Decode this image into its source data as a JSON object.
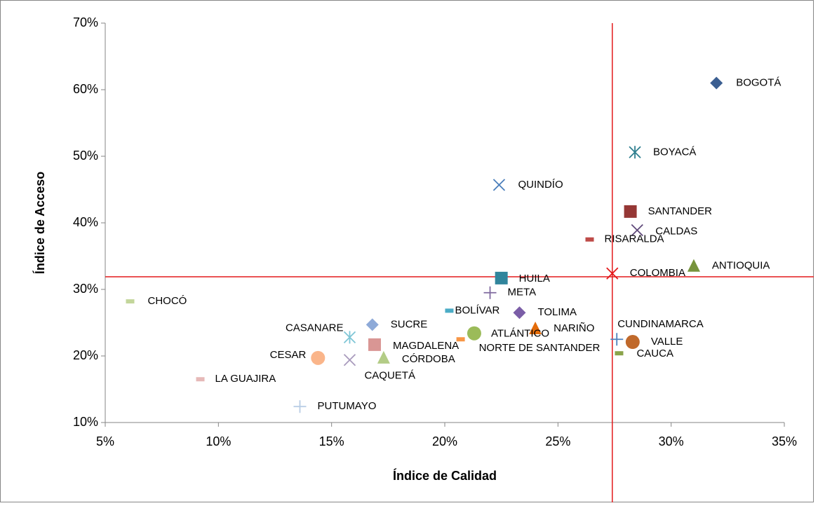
{
  "chart_data": {
    "type": "scatter",
    "x_label": "Índice de Calidad",
    "y_label": "Índice de Acceso",
    "xlim": [
      5,
      35
    ],
    "ylim": [
      10,
      70
    ],
    "xticks": [
      {
        "value": 5,
        "label": "5%"
      },
      {
        "value": 10,
        "label": "10%"
      },
      {
        "value": 15,
        "label": "15%"
      },
      {
        "value": 20,
        "label": "20%"
      },
      {
        "value": 25,
        "label": "25%"
      },
      {
        "value": 30,
        "label": "30%"
      },
      {
        "value": 35,
        "label": "35%"
      }
    ],
    "yticks": [
      {
        "value": 10,
        "label": "10%"
      },
      {
        "value": 20,
        "label": "20%"
      },
      {
        "value": 30,
        "label": "30%"
      },
      {
        "value": 40,
        "label": "40%"
      },
      {
        "value": 50,
        "label": "50%"
      },
      {
        "value": 60,
        "label": "60%"
      },
      {
        "value": 70,
        "label": "70%"
      }
    ],
    "reference_lines": {
      "x": 27.4,
      "y": 31.9,
      "color": "#e31a1c"
    },
    "series": [
      {
        "name": "BOGOTÁ",
        "color": "#3b5e91",
        "marker": "diamond",
        "x": [
          32.0
        ],
        "values": [
          61.0
        ]
      },
      {
        "name": "BOYACÁ",
        "color": "#2f7f8f",
        "marker": "asterisk",
        "x": [
          28.4
        ],
        "values": [
          50.6
        ]
      },
      {
        "name": "QUINDÍO",
        "color": "#4a7ebb",
        "marker": "x",
        "x": [
          22.4
        ],
        "values": [
          45.7
        ]
      },
      {
        "name": "SANTANDER",
        "color": "#953735",
        "marker": "square",
        "x": [
          28.2
        ],
        "values": [
          41.7
        ]
      },
      {
        "name": "CALDAS",
        "color": "#604a7b",
        "marker": "x",
        "x": [
          28.5
        ],
        "values": [
          38.9
        ]
      },
      {
        "name": "RISARALDA",
        "color": "#be4b48",
        "marker": "dash",
        "x": [
          26.4
        ],
        "values": [
          37.5
        ]
      },
      {
        "name": "ANTIOQUIA",
        "color": "#77933c",
        "marker": "triangle",
        "x": [
          31.0
        ],
        "values": [
          33.5
        ]
      },
      {
        "name": "COLOMBIA",
        "color": "#e31a1c",
        "marker": "x",
        "x": [
          27.4
        ],
        "values": [
          32.4
        ]
      },
      {
        "name": "HUILA",
        "color": "#31859c",
        "marker": "square",
        "x": [
          22.5
        ],
        "values": [
          31.7
        ]
      },
      {
        "name": "META",
        "color": "#7f6a9f",
        "marker": "plus",
        "x": [
          22.0
        ],
        "values": [
          29.5
        ]
      },
      {
        "name": "CHOCÓ",
        "color": "#c3d69b",
        "marker": "dash",
        "x": [
          6.1
        ],
        "values": [
          28.2
        ]
      },
      {
        "name": "BOLÍVAR",
        "color": "#4bacc6",
        "marker": "dash",
        "x": [
          20.2
        ],
        "values": [
          26.8
        ]
      },
      {
        "name": "TOLIMA",
        "color": "#7b5ea7",
        "marker": "diamond",
        "x": [
          23.3
        ],
        "values": [
          26.5
        ]
      },
      {
        "name": "NARIÑO",
        "color": "#e46c0a",
        "marker": "triangle",
        "x": [
          24.0
        ],
        "values": [
          24.1
        ]
      },
      {
        "name": "ATLÁNTICO",
        "color": "#9bbb59",
        "marker": "circle",
        "x": [
          21.3
        ],
        "values": [
          23.4
        ]
      },
      {
        "name": "SUCRE",
        "color": "#8eaad8",
        "marker": "diamond",
        "x": [
          16.8
        ],
        "values": [
          24.7
        ]
      },
      {
        "name": "CASANARE",
        "color": "#7fc6d6",
        "marker": "asterisk",
        "x": [
          15.8
        ],
        "values": [
          22.8
        ]
      },
      {
        "name": "NORTE DE SANTANDER",
        "color": "#f79646",
        "marker": "dash",
        "x": [
          20.7
        ],
        "values": [
          22.5
        ]
      },
      {
        "name": "MAGDALENA",
        "color": "#d99694",
        "marker": "square",
        "x": [
          16.9
        ],
        "values": [
          21.7
        ]
      },
      {
        "name": "CUNDINAMARCA",
        "color": "#4f81bd",
        "marker": "plus",
        "x": [
          27.6
        ],
        "values": [
          22.5
        ]
      },
      {
        "name": "VALLE",
        "color": "#c0692b",
        "marker": "circle",
        "x": [
          28.3
        ],
        "values": [
          22.1
        ]
      },
      {
        "name": "CAUCA",
        "color": "#8aa34a",
        "marker": "dash",
        "x": [
          27.7
        ],
        "values": [
          20.4
        ]
      },
      {
        "name": "CESAR",
        "color": "#fab58a",
        "marker": "circle",
        "x": [
          14.4
        ],
        "values": [
          19.7
        ]
      },
      {
        "name": "CAQUETÁ",
        "color": "#a99bbd",
        "marker": "x",
        "x": [
          15.8
        ],
        "values": [
          19.4
        ]
      },
      {
        "name": "CÓRDOBA",
        "color": "#b3cc86",
        "marker": "triangle",
        "x": [
          17.3
        ],
        "values": [
          19.7
        ]
      },
      {
        "name": "LA GUAJIRA",
        "color": "#e6b9b8",
        "marker": "dash",
        "x": [
          9.2
        ],
        "values": [
          16.5
        ]
      },
      {
        "name": "PUTUMAYO",
        "color": "#b9cde5",
        "marker": "plus",
        "x": [
          13.6
        ],
        "values": [
          12.4
        ]
      }
    ]
  }
}
